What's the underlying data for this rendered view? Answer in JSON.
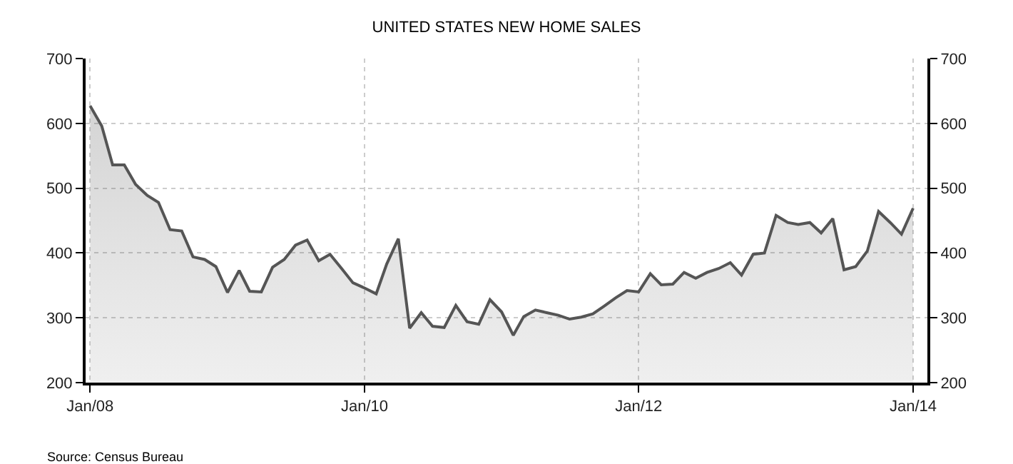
{
  "chart_data": {
    "type": "area",
    "title": "UNITED STATES NEW HOME SALES",
    "x": [
      "2008-01",
      "2008-02",
      "2008-03",
      "2008-04",
      "2008-05",
      "2008-06",
      "2008-07",
      "2008-08",
      "2008-09",
      "2008-10",
      "2008-11",
      "2008-12",
      "2009-01",
      "2009-02",
      "2009-03",
      "2009-04",
      "2009-05",
      "2009-06",
      "2009-07",
      "2009-08",
      "2009-09",
      "2009-10",
      "2009-11",
      "2009-12",
      "2010-01",
      "2010-02",
      "2010-03",
      "2010-04",
      "2010-05",
      "2010-06",
      "2010-07",
      "2010-08",
      "2010-09",
      "2010-10",
      "2010-11",
      "2010-12",
      "2011-01",
      "2011-02",
      "2011-03",
      "2011-04",
      "2011-05",
      "2011-06",
      "2011-07",
      "2011-08",
      "2011-09",
      "2011-10",
      "2011-11",
      "2011-12",
      "2012-01",
      "2012-02",
      "2012-03",
      "2012-04",
      "2012-05",
      "2012-06",
      "2012-07",
      "2012-08",
      "2012-09",
      "2012-10",
      "2012-11",
      "2012-12",
      "2013-01",
      "2013-02",
      "2013-03",
      "2013-04",
      "2013-05",
      "2013-06",
      "2013-07",
      "2013-08",
      "2013-09",
      "2013-10",
      "2013-11",
      "2013-12",
      "2014-01"
    ],
    "series": [
      {
        "color": "#555555",
        "values": [
          627,
          596,
          536,
          536,
          506,
          489,
          478,
          436,
          434,
          394,
          390,
          379,
          339,
          373,
          341,
          340,
          378,
          390,
          412,
          420,
          388,
          398,
          376,
          354,
          346,
          337,
          383,
          422,
          284,
          308,
          287,
          285,
          319,
          294,
          290,
          328,
          309,
          273,
          302,
          312,
          308,
          304,
          298,
          301,
          306,
          318,
          331,
          342,
          340,
          368,
          351,
          352,
          370,
          361,
          370,
          376,
          385,
          366,
          398,
          400,
          458,
          447,
          444,
          447,
          431,
          453,
          374,
          379,
          403,
          464,
          447,
          429,
          469
        ]
      }
    ],
    "xlim": [
      "2007-12-20",
      "2014-02-08"
    ],
    "xticks": [
      {
        "value": "2008-01",
        "label": "Jan/08"
      },
      {
        "value": "2010-01",
        "label": "Jan/10"
      },
      {
        "value": "2012-01",
        "label": "Jan/12"
      },
      {
        "value": "2014-01",
        "label": "Jan/14"
      }
    ],
    "ylim": [
      200,
      700
    ],
    "yticks": [
      200,
      300,
      400,
      500,
      600,
      700
    ],
    "y2lim": [
      200,
      700
    ],
    "y2ticks": [
      200,
      300,
      400,
      500,
      600,
      700
    ],
    "grid": true,
    "marker": "none",
    "line_style": "solid",
    "annotations": [
      "Source: Census Bureau"
    ]
  }
}
